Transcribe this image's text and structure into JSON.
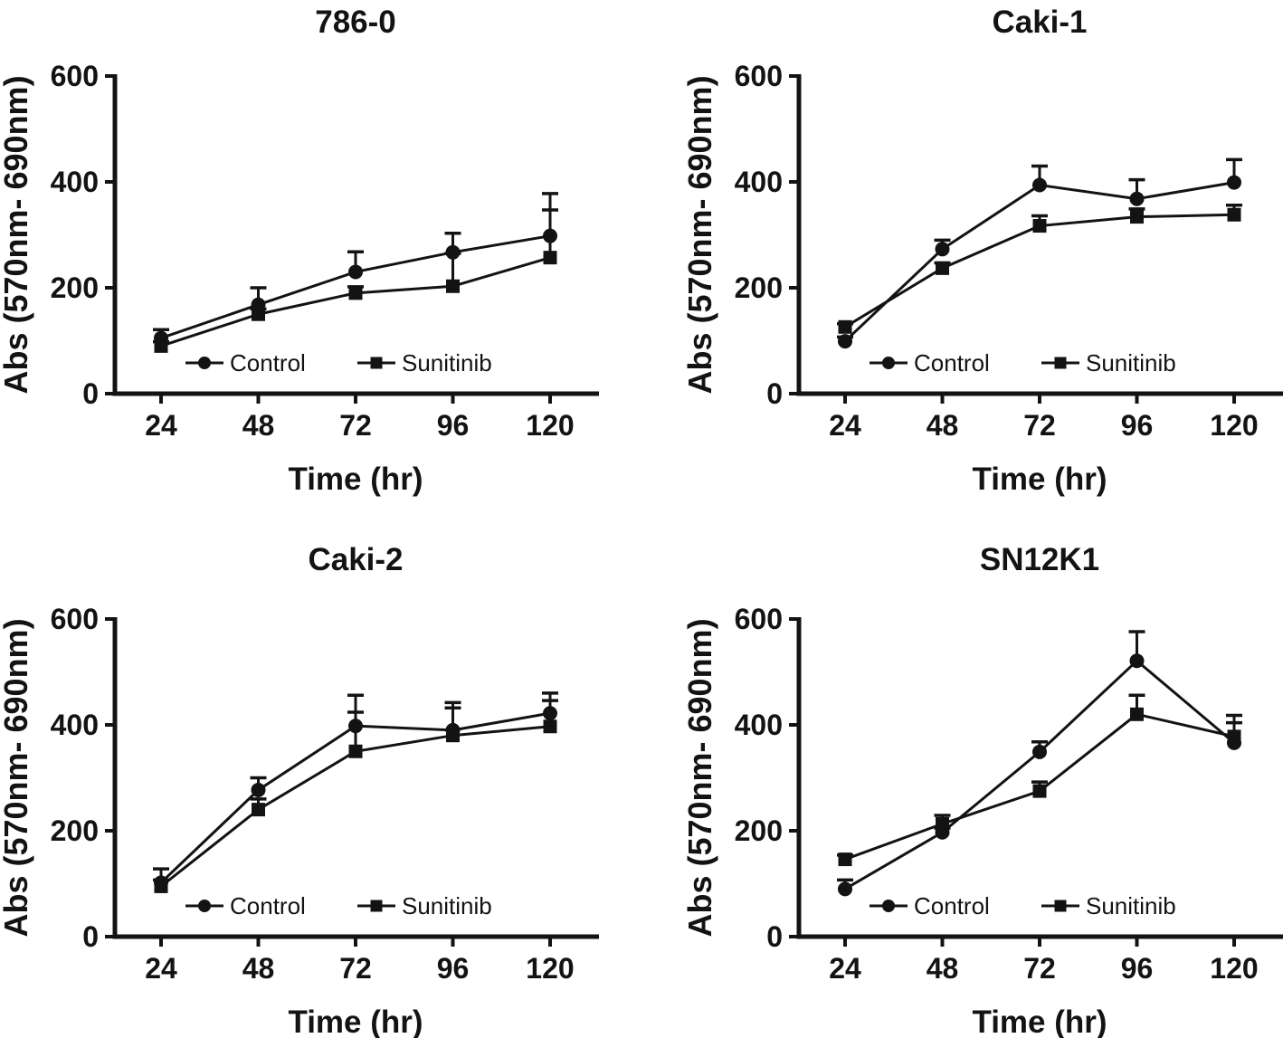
{
  "figure": {
    "background": "#ffffff",
    "ink_color": "#131313",
    "xlabel": "Time (hr)",
    "ylabel": "Abs (570nm- 690nm)",
    "legend": [
      {
        "label": "Control",
        "marker": "circle"
      },
      {
        "label": "Sunitinib",
        "marker": "square"
      }
    ]
  },
  "chart_data": [
    {
      "type": "line",
      "title": "786-0",
      "x": [
        24,
        48,
        72,
        96,
        120
      ],
      "xlabel": "Time (hr)",
      "ylabel": "Abs (570nm- 690nm)",
      "ylim": [
        0,
        600
      ],
      "yticks": [
        0,
        200,
        400,
        600
      ],
      "grid": false,
      "legend_position": "inside-bottom",
      "axis_extends_right": false,
      "series": [
        {
          "name": "Control",
          "marker": "circle",
          "values": [
            105,
            168,
            230,
            267,
            298
          ],
          "errors_up": [
            16,
            32,
            38,
            36,
            80
          ]
        },
        {
          "name": "Sunitinib",
          "marker": "square",
          "values": [
            90,
            150,
            190,
            203,
            257
          ],
          "errors_up": [
            8,
            10,
            12,
            62,
            90
          ]
        }
      ]
    },
    {
      "type": "line",
      "title": "Caki-1",
      "x": [
        24,
        48,
        72,
        96,
        120
      ],
      "xlabel": "Time (hr)",
      "ylabel": "Abs (570nm- 690nm)",
      "ylim": [
        0,
        600
      ],
      "yticks": [
        0,
        200,
        400,
        600
      ],
      "grid": false,
      "legend_position": "inside-bottom",
      "axis_extends_right": true,
      "series": [
        {
          "name": "Control",
          "marker": "circle",
          "values": [
            99,
            273,
            394,
            368,
            399
          ],
          "errors_up": [
            8,
            17,
            36,
            36,
            43
          ]
        },
        {
          "name": "Sunitinib",
          "marker": "square",
          "values": [
            126,
            237,
            317,
            334,
            338
          ],
          "errors_up": [
            6,
            10,
            19,
            15,
            18
          ]
        }
      ]
    },
    {
      "type": "line",
      "title": "Caki-2",
      "x": [
        24,
        48,
        72,
        96,
        120
      ],
      "xlabel": "Time (hr)",
      "ylabel": "Abs (570nm- 690nm)",
      "ylim": [
        0,
        600
      ],
      "yticks": [
        0,
        200,
        400,
        600
      ],
      "grid": false,
      "legend_position": "inside-bottom",
      "axis_extends_right": false,
      "series": [
        {
          "name": "Control",
          "marker": "circle",
          "values": [
            102,
            277,
            398,
            390,
            422
          ],
          "errors_up": [
            26,
            23,
            58,
            52,
            38
          ]
        },
        {
          "name": "Sunitinib",
          "marker": "square",
          "values": [
            95,
            240,
            350,
            380,
            397
          ],
          "errors_up": [
            12,
            20,
            74,
            52,
            49
          ]
        }
      ]
    },
    {
      "type": "line",
      "title": "SN12K1",
      "x": [
        24,
        48,
        72,
        96,
        120
      ],
      "xlabel": "Time (hr)",
      "ylabel": "Abs (570nm- 690nm)",
      "ylim": [
        0,
        600
      ],
      "yticks": [
        0,
        200,
        400,
        600
      ],
      "grid": false,
      "legend_position": "inside-bottom",
      "axis_extends_right": true,
      "series": [
        {
          "name": "Control",
          "marker": "circle",
          "values": [
            90,
            197,
            349,
            521,
            366
          ],
          "errors_up": [
            17,
            8,
            19,
            55,
            38
          ]
        },
        {
          "name": "Sunitinib",
          "marker": "square",
          "values": [
            146,
            213,
            275,
            420,
            378
          ],
          "errors_up": [
            8,
            16,
            17,
            36,
            40
          ]
        }
      ]
    }
  ]
}
